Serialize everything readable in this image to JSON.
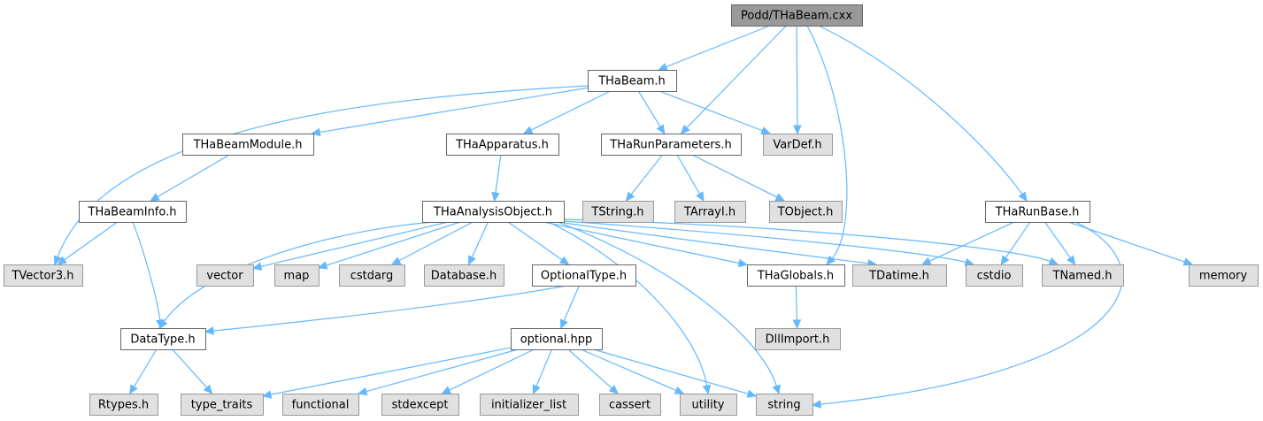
{
  "graph": {
    "nodes": [
      {
        "id": "root",
        "label": "Podd/THaBeam.cxx",
        "kind": "root"
      },
      {
        "id": "thabeam",
        "label": "THaBeam.h",
        "kind": "doc"
      },
      {
        "id": "thabeammodule",
        "label": "THaBeamModule.h",
        "kind": "doc"
      },
      {
        "id": "thaapparatus",
        "label": "THaApparatus.h",
        "kind": "doc"
      },
      {
        "id": "tharunparameters",
        "label": "THaRunParameters.h",
        "kind": "doc"
      },
      {
        "id": "vardef",
        "label": "VarDef.h",
        "kind": "sys"
      },
      {
        "id": "thabeaminfo",
        "label": "THaBeamInfo.h",
        "kind": "doc"
      },
      {
        "id": "thaanalysisobject",
        "label": "THaAnalysisObject.h",
        "kind": "doc"
      },
      {
        "id": "tstring",
        "label": "TString.h",
        "kind": "sys"
      },
      {
        "id": "tarrayi",
        "label": "TArrayI.h",
        "kind": "sys"
      },
      {
        "id": "tobject",
        "label": "TObject.h",
        "kind": "sys"
      },
      {
        "id": "tharunbase",
        "label": "THaRunBase.h",
        "kind": "doc"
      },
      {
        "id": "tvector3",
        "label": "TVector3.h",
        "kind": "sys"
      },
      {
        "id": "vector",
        "label": "vector",
        "kind": "sys"
      },
      {
        "id": "map",
        "label": "map",
        "kind": "sys"
      },
      {
        "id": "cstdarg",
        "label": "cstdarg",
        "kind": "sys"
      },
      {
        "id": "database",
        "label": "Database.h",
        "kind": "sys"
      },
      {
        "id": "optionaltype",
        "label": "OptionalType.h",
        "kind": "doc"
      },
      {
        "id": "thaglobals",
        "label": "THaGlobals.h",
        "kind": "doc"
      },
      {
        "id": "tdatime",
        "label": "TDatime.h",
        "kind": "sys"
      },
      {
        "id": "cstdio",
        "label": "cstdio",
        "kind": "sys"
      },
      {
        "id": "tnamed",
        "label": "TNamed.h",
        "kind": "sys"
      },
      {
        "id": "memory",
        "label": "memory",
        "kind": "sys"
      },
      {
        "id": "datatype",
        "label": "DataType.h",
        "kind": "doc"
      },
      {
        "id": "optionalhpp",
        "label": "optional.hpp",
        "kind": "doc"
      },
      {
        "id": "dllimport",
        "label": "DllImport.h",
        "kind": "sys"
      },
      {
        "id": "rtypes",
        "label": "Rtypes.h",
        "kind": "sys"
      },
      {
        "id": "type_traits",
        "label": "type_traits",
        "kind": "sys"
      },
      {
        "id": "functional",
        "label": "functional",
        "kind": "sys"
      },
      {
        "id": "stdexcept",
        "label": "stdexcept",
        "kind": "sys"
      },
      {
        "id": "initializer_list",
        "label": "initializer_list",
        "kind": "sys"
      },
      {
        "id": "cassert",
        "label": "cassert",
        "kind": "sys"
      },
      {
        "id": "utility",
        "label": "utility",
        "kind": "sys"
      },
      {
        "id": "string",
        "label": "string",
        "kind": "sys"
      }
    ],
    "edges": [
      [
        "root",
        "thabeam"
      ],
      [
        "root",
        "tharunparameters"
      ],
      [
        "root",
        "vardef"
      ],
      [
        "root",
        "thaglobals"
      ],
      [
        "root",
        "tharunbase"
      ],
      [
        "thabeam",
        "thabeammodule"
      ],
      [
        "thabeam",
        "thaapparatus"
      ],
      [
        "thabeam",
        "tharunparameters"
      ],
      [
        "thabeam",
        "vardef"
      ],
      [
        "thabeam",
        "tvector3"
      ],
      [
        "thabeammodule",
        "thabeaminfo"
      ],
      [
        "thabeaminfo",
        "tvector3"
      ],
      [
        "thabeaminfo",
        "datatype"
      ],
      [
        "thaapparatus",
        "thaanalysisobject"
      ],
      [
        "tharunparameters",
        "tstring"
      ],
      [
        "tharunparameters",
        "tarrayi"
      ],
      [
        "tharunparameters",
        "tobject"
      ],
      [
        "thaanalysisobject",
        "datatype"
      ],
      [
        "thaanalysisobject",
        "vector"
      ],
      [
        "thaanalysisobject",
        "map"
      ],
      [
        "thaanalysisobject",
        "cstdarg"
      ],
      [
        "thaanalysisobject",
        "database"
      ],
      [
        "thaanalysisobject",
        "optionaltype"
      ],
      [
        "thaanalysisobject",
        "thaglobals"
      ],
      [
        "thaanalysisobject",
        "tdatime"
      ],
      [
        "thaanalysisobject",
        "cstdio"
      ],
      [
        "thaanalysisobject",
        "tnamed"
      ],
      [
        "thaanalysisobject",
        "utility"
      ],
      [
        "thaanalysisobject",
        "string"
      ],
      [
        "tharunbase",
        "tdatime"
      ],
      [
        "tharunbase",
        "cstdio"
      ],
      [
        "tharunbase",
        "tnamed"
      ],
      [
        "tharunbase",
        "memory"
      ],
      [
        "tharunbase",
        "string"
      ],
      [
        "optionaltype",
        "datatype"
      ],
      [
        "optionaltype",
        "optionalhpp"
      ],
      [
        "thaglobals",
        "dllimport"
      ],
      [
        "datatype",
        "rtypes"
      ],
      [
        "datatype",
        "type_traits"
      ],
      [
        "optionalhpp",
        "type_traits"
      ],
      [
        "optionalhpp",
        "functional"
      ],
      [
        "optionalhpp",
        "stdexcept"
      ],
      [
        "optionalhpp",
        "initializer_list"
      ],
      [
        "optionalhpp",
        "cassert"
      ],
      [
        "optionalhpp",
        "utility"
      ],
      [
        "optionalhpp",
        "string"
      ]
    ]
  }
}
